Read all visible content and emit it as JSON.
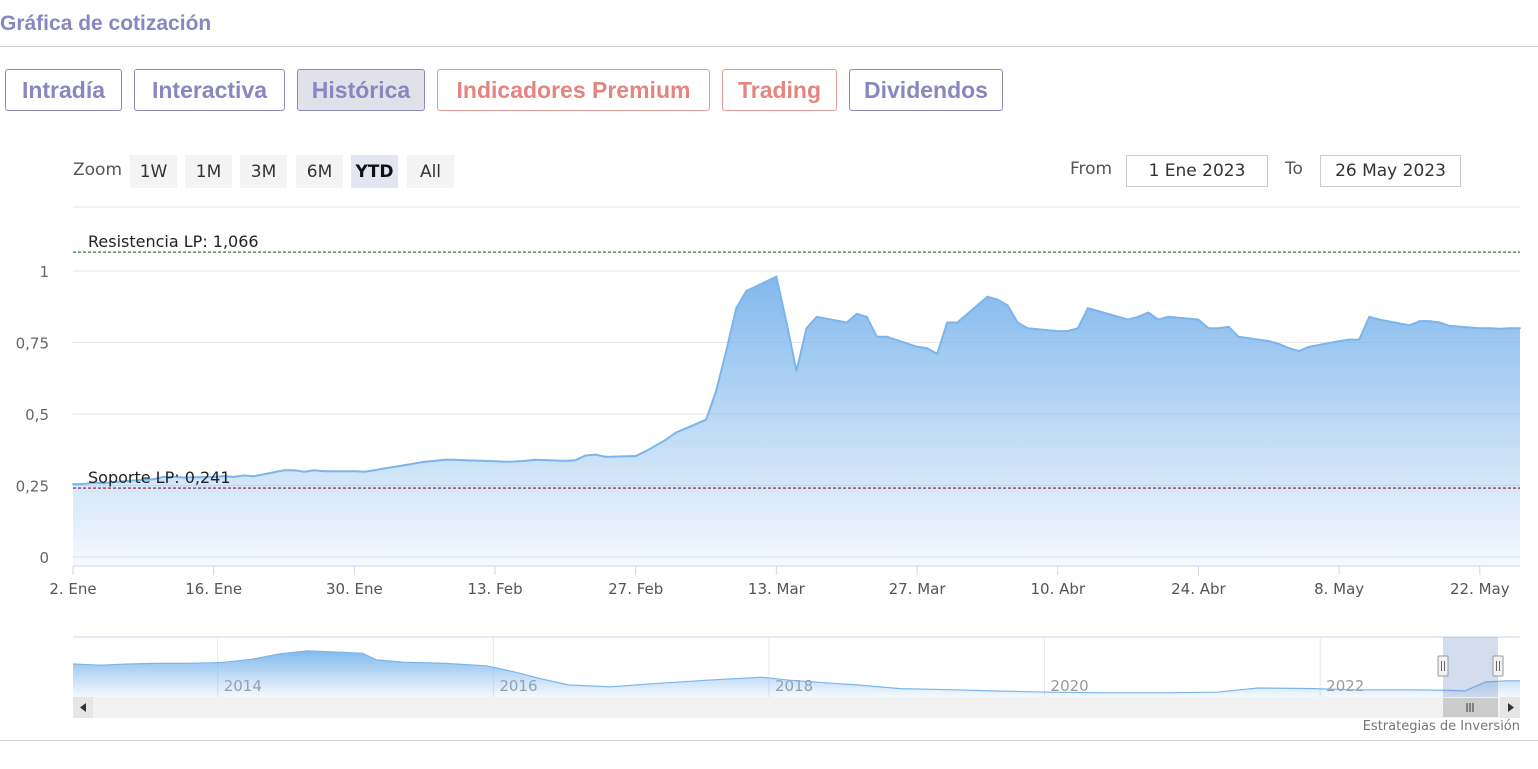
{
  "section_title": "Gráfica de cotización",
  "tabs": [
    {
      "label": "Intradía",
      "premium": false,
      "active": false
    },
    {
      "label": "Interactiva",
      "premium": false,
      "active": false
    },
    {
      "label": "Histórica",
      "premium": false,
      "active": true
    },
    {
      "label": "Indicadores Premium",
      "premium": true,
      "active": false
    },
    {
      "label": "Trading",
      "premium": true,
      "active": false
    },
    {
      "label": "Dividendos",
      "premium": false,
      "active": false
    }
  ],
  "zoom": {
    "label": "Zoom",
    "buttons": [
      "1W",
      "1M",
      "3M",
      "6M",
      "YTD",
      "All"
    ],
    "selected": "YTD"
  },
  "range": {
    "from_label": "From",
    "from_value": "1 Ene 2023",
    "to_label": "To",
    "to_value": "26 May 2023"
  },
  "credits": "Estrategias de Inversión",
  "colors": {
    "series": "#7cb5ec",
    "resistance": "#2e7d32",
    "support": "#8b1a2b",
    "tab_text": "#8a86bf",
    "tab_premium": "#e38581"
  },
  "chart_data": {
    "type": "area",
    "x_start": "2023-01-02",
    "x_end": "2023-05-26",
    "ylim": [
      0,
      1
    ],
    "y_ticks": [
      0,
      0.25,
      0.5,
      0.75,
      1
    ],
    "y_tick_labels": [
      "0",
      "0,25",
      "0,5",
      "0,75",
      "1"
    ],
    "x_tick_labels": [
      "2. Ene",
      "16. Ene",
      "30. Ene",
      "13. Feb",
      "27. Feb",
      "13. Mar",
      "27. Mar",
      "10. Abr",
      "24. Abr",
      "8. May",
      "22. May"
    ],
    "x_tick_dates": [
      "2023-01-02",
      "2023-01-16",
      "2023-01-30",
      "2023-02-13",
      "2023-02-27",
      "2023-03-13",
      "2023-03-27",
      "2023-04-10",
      "2023-04-24",
      "2023-05-08",
      "2023-05-22"
    ],
    "series": [
      {
        "points": [
          [
            "2023-01-02",
            0.255
          ],
          [
            "2023-01-03",
            0.255
          ],
          [
            "2023-01-04",
            0.26
          ],
          [
            "2023-01-05",
            0.258
          ],
          [
            "2023-01-06",
            0.262
          ],
          [
            "2023-01-09",
            0.27
          ],
          [
            "2023-01-10",
            0.272
          ],
          [
            "2023-01-11",
            0.28
          ],
          [
            "2023-01-12",
            0.28
          ],
          [
            "2023-01-13",
            0.278
          ],
          [
            "2023-01-16",
            0.28
          ],
          [
            "2023-01-17",
            0.283
          ],
          [
            "2023-01-18",
            0.28
          ],
          [
            "2023-01-19",
            0.285
          ],
          [
            "2023-01-20",
            0.282
          ],
          [
            "2023-01-23",
            0.303
          ],
          [
            "2023-01-24",
            0.303
          ],
          [
            "2023-01-25",
            0.298
          ],
          [
            "2023-01-26",
            0.303
          ],
          [
            "2023-01-27",
            0.3
          ],
          [
            "2023-01-30",
            0.3
          ],
          [
            "2023-01-31",
            0.298
          ],
          [
            "2023-02-01",
            0.303
          ],
          [
            "2023-02-02",
            0.31
          ],
          [
            "2023-02-03",
            0.315
          ],
          [
            "2023-02-06",
            0.333
          ],
          [
            "2023-02-07",
            0.336
          ],
          [
            "2023-02-08",
            0.34
          ],
          [
            "2023-02-09",
            0.34
          ],
          [
            "2023-02-10",
            0.338
          ],
          [
            "2023-02-13",
            0.335
          ],
          [
            "2023-02-14",
            0.333
          ],
          [
            "2023-02-15",
            0.334
          ],
          [
            "2023-02-16",
            0.336
          ],
          [
            "2023-02-17",
            0.34
          ],
          [
            "2023-02-20",
            0.336
          ],
          [
            "2023-02-21",
            0.338
          ],
          [
            "2023-02-22",
            0.355
          ],
          [
            "2023-02-23",
            0.358
          ],
          [
            "2023-02-24",
            0.35
          ],
          [
            "2023-02-27",
            0.353
          ],
          [
            "2023-02-28",
            0.37
          ],
          [
            "2023-03-01",
            0.39
          ],
          [
            "2023-03-02",
            0.41
          ],
          [
            "2023-03-03",
            0.435
          ],
          [
            "2023-03-06",
            0.48
          ],
          [
            "2023-03-07",
            0.58
          ],
          [
            "2023-03-08",
            0.72
          ],
          [
            "2023-03-09",
            0.87
          ],
          [
            "2023-03-10",
            0.93
          ],
          [
            "2023-03-13",
            0.98
          ],
          [
            "2023-03-14",
            0.82
          ],
          [
            "2023-03-15",
            0.65
          ],
          [
            "2023-03-16",
            0.8
          ],
          [
            "2023-03-17",
            0.84
          ],
          [
            "2023-03-20",
            0.82
          ],
          [
            "2023-03-21",
            0.85
          ],
          [
            "2023-03-22",
            0.84
          ],
          [
            "2023-03-23",
            0.77
          ],
          [
            "2023-03-24",
            0.77
          ],
          [
            "2023-03-27",
            0.735
          ],
          [
            "2023-03-28",
            0.73
          ],
          [
            "2023-03-29",
            0.71
          ],
          [
            "2023-03-30",
            0.82
          ],
          [
            "2023-03-31",
            0.82
          ],
          [
            "2023-04-03",
            0.91
          ],
          [
            "2023-04-04",
            0.9
          ],
          [
            "2023-04-05",
            0.88
          ],
          [
            "2023-04-06",
            0.82
          ],
          [
            "2023-04-07",
            0.8
          ],
          [
            "2023-04-10",
            0.79
          ],
          [
            "2023-04-11",
            0.79
          ],
          [
            "2023-04-12",
            0.8
          ],
          [
            "2023-04-13",
            0.87
          ],
          [
            "2023-04-14",
            0.86
          ],
          [
            "2023-04-17",
            0.83
          ],
          [
            "2023-04-18",
            0.84
          ],
          [
            "2023-04-19",
            0.855
          ],
          [
            "2023-04-20",
            0.83
          ],
          [
            "2023-04-21",
            0.84
          ],
          [
            "2023-04-24",
            0.83
          ],
          [
            "2023-04-25",
            0.8
          ],
          [
            "2023-04-26",
            0.8
          ],
          [
            "2023-04-27",
            0.805
          ],
          [
            "2023-04-28",
            0.77
          ],
          [
            "2023-05-01",
            0.755
          ],
          [
            "2023-05-02",
            0.745
          ],
          [
            "2023-05-03",
            0.73
          ],
          [
            "2023-05-04",
            0.72
          ],
          [
            "2023-05-05",
            0.735
          ],
          [
            "2023-05-08",
            0.755
          ],
          [
            "2023-05-09",
            0.76
          ],
          [
            "2023-05-10",
            0.76
          ],
          [
            "2023-05-11",
            0.84
          ],
          [
            "2023-05-12",
            0.83
          ],
          [
            "2023-05-15",
            0.81
          ],
          [
            "2023-05-16",
            0.825
          ],
          [
            "2023-05-17",
            0.825
          ],
          [
            "2023-05-18",
            0.82
          ],
          [
            "2023-05-19",
            0.808
          ],
          [
            "2023-05-22",
            0.8
          ],
          [
            "2023-05-23",
            0.8
          ],
          [
            "2023-05-24",
            0.798
          ],
          [
            "2023-05-25",
            0.8
          ],
          [
            "2023-05-26",
            0.8
          ]
        ]
      }
    ],
    "annotations": [
      {
        "label": "Resistencia LP: 1,066",
        "value": 1.066,
        "color": "#2e7d32"
      },
      {
        "label": "Soporte LP: 0,241",
        "value": 0.241,
        "color": "#8b1a2b"
      }
    ],
    "navigator": {
      "year_labels": [
        "2014",
        "2016",
        "2018",
        "2020",
        "2022"
      ],
      "x_start_year": 2012.9,
      "x_end_year": 2023.4,
      "year_ticks": [
        2013.95,
        2015.95,
        2017.95,
        2019.95,
        2021.95
      ],
      "series": [
        [
          2012.9,
          0.55
        ],
        [
          2013.1,
          0.53
        ],
        [
          2013.3,
          0.55
        ],
        [
          2013.5,
          0.56
        ],
        [
          2013.7,
          0.56
        ],
        [
          2013.9,
          0.57
        ],
        [
          2014.0,
          0.58
        ],
        [
          2014.2,
          0.63
        ],
        [
          2014.4,
          0.72
        ],
        [
          2014.6,
          0.77
        ],
        [
          2014.8,
          0.75
        ],
        [
          2015.0,
          0.73
        ],
        [
          2015.1,
          0.62
        ],
        [
          2015.3,
          0.58
        ],
        [
          2015.6,
          0.56
        ],
        [
          2015.9,
          0.52
        ],
        [
          2016.1,
          0.42
        ],
        [
          2016.3,
          0.3
        ],
        [
          2016.5,
          0.2
        ],
        [
          2016.8,
          0.17
        ],
        [
          2017.1,
          0.22
        ],
        [
          2017.5,
          0.28
        ],
        [
          2017.9,
          0.33
        ],
        [
          2018.1,
          0.28
        ],
        [
          2018.4,
          0.23
        ],
        [
          2018.6,
          0.2
        ],
        [
          2018.9,
          0.14
        ],
        [
          2019.3,
          0.12
        ],
        [
          2019.6,
          0.1
        ],
        [
          2020.0,
          0.08
        ],
        [
          2020.4,
          0.07
        ],
        [
          2020.8,
          0.07
        ],
        [
          2021.2,
          0.08
        ],
        [
          2021.5,
          0.15
        ],
        [
          2021.9,
          0.14
        ],
        [
          2022.2,
          0.12
        ],
        [
          2022.6,
          0.12
        ],
        [
          2022.9,
          0.11
        ],
        [
          2023.0,
          0.1
        ],
        [
          2023.15,
          0.25
        ],
        [
          2023.3,
          0.27
        ],
        [
          2023.4,
          0.27
        ]
      ]
    }
  }
}
